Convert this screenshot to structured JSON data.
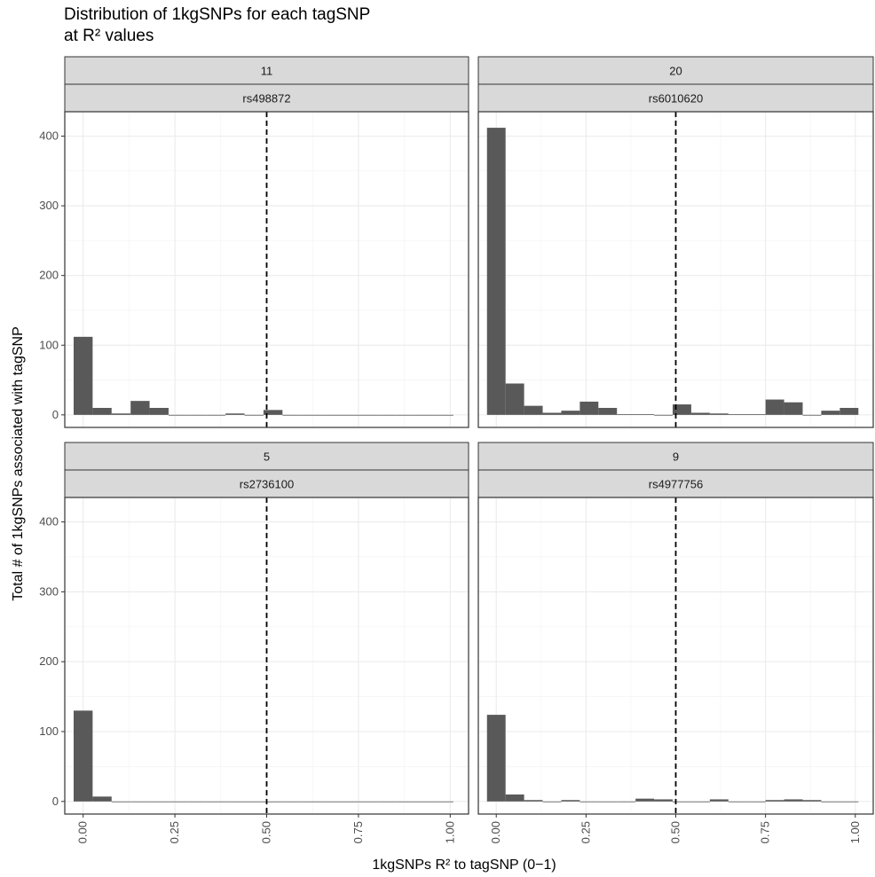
{
  "chart_data": {
    "type": "bar",
    "title": "Distribution of 1kgSNPs for each tagSNP",
    "subtitle": "at R² values",
    "xlabel": "1kgSNPs R² to tagSNP (0−1)",
    "ylabel": "Total # of 1kgSNPs associated with tagSNP",
    "xlim": [
      -0.05,
      1.05
    ],
    "ylim": [
      -18,
      435
    ],
    "x_ticks": [
      0,
      0.25,
      0.5,
      0.75,
      1
    ],
    "x_tick_labels": [
      "0.00",
      "0.25",
      "0.50",
      "0.75",
      "1.00"
    ],
    "y_ticks": [
      0,
      100,
      200,
      300,
      400
    ],
    "y_tick_labels": [
      "0",
      "100",
      "200",
      "300",
      "400"
    ],
    "bin_width": 0.05172,
    "bin_centers": [
      0,
      0.0517,
      0.1034,
      0.1552,
      0.2069,
      0.2586,
      0.3103,
      0.3621,
      0.4138,
      0.4655,
      0.5172,
      0.569,
      0.6207,
      0.6724,
      0.7241,
      0.7759,
      0.8276,
      0.8793,
      0.931,
      0.9828
    ],
    "reference_line_x": 0.5,
    "grid": true,
    "bar_color": "#595959",
    "panels": [
      {
        "strip_top": "11",
        "strip_bottom": "rs498872",
        "values": [
          112,
          10,
          2,
          20,
          10,
          0,
          0,
          0,
          2,
          0,
          7,
          0,
          0,
          0,
          0,
          0,
          0,
          0,
          0,
          0
        ]
      },
      {
        "strip_top": "20",
        "strip_bottom": "rs6010620",
        "values": [
          412,
          45,
          13,
          3,
          6,
          19,
          10,
          1,
          1,
          0,
          15,
          3,
          2,
          1,
          1,
          22,
          18,
          0,
          6,
          10
        ]
      },
      {
        "strip_top": "5",
        "strip_bottom": "rs2736100",
        "values": [
          130,
          7,
          0,
          0,
          0,
          0,
          0,
          0,
          0,
          0,
          0,
          0,
          0,
          0,
          0,
          0,
          0,
          0,
          0,
          0
        ]
      },
      {
        "strip_top": "9",
        "strip_bottom": "rs4977756",
        "values": [
          124,
          10,
          2,
          0,
          2,
          0,
          0,
          0,
          4,
          3,
          0,
          0,
          3,
          0,
          0,
          2,
          3,
          2,
          0,
          0
        ]
      }
    ]
  }
}
